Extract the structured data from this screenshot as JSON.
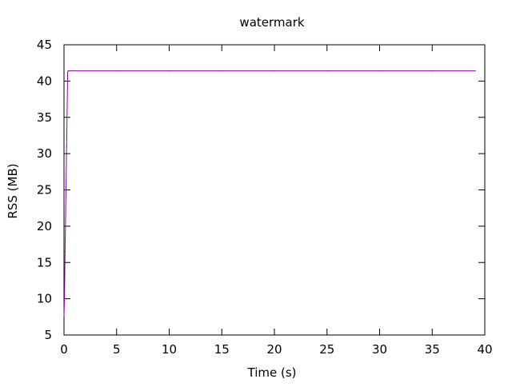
{
  "chart_data": {
    "type": "line",
    "title": "watermark",
    "xlabel": "Time (s)",
    "ylabel": "RSS (MB)",
    "xlim": [
      0,
      40
    ],
    "ylim": [
      5,
      45
    ],
    "x_ticks": [
      0,
      5,
      10,
      15,
      20,
      25,
      30,
      35,
      40
    ],
    "y_ticks": [
      5,
      10,
      15,
      20,
      25,
      30,
      35,
      40,
      45
    ],
    "grid": false,
    "legend": "none",
    "series": [
      {
        "color": "#8b00a8",
        "x": [
          0.0,
          0.05,
          0.1,
          0.15,
          0.2,
          0.25,
          0.3,
          0.35,
          0.4,
          1.0,
          5,
          10,
          15,
          20,
          25,
          30,
          35,
          39.1
        ],
        "y": [
          7.6,
          10.5,
          16.5,
          21.0,
          26.0,
          31.0,
          36.0,
          41.2,
          41.4,
          41.4,
          41.4,
          41.4,
          41.4,
          41.4,
          41.4,
          41.4,
          41.4,
          41.4
        ]
      }
    ]
  }
}
